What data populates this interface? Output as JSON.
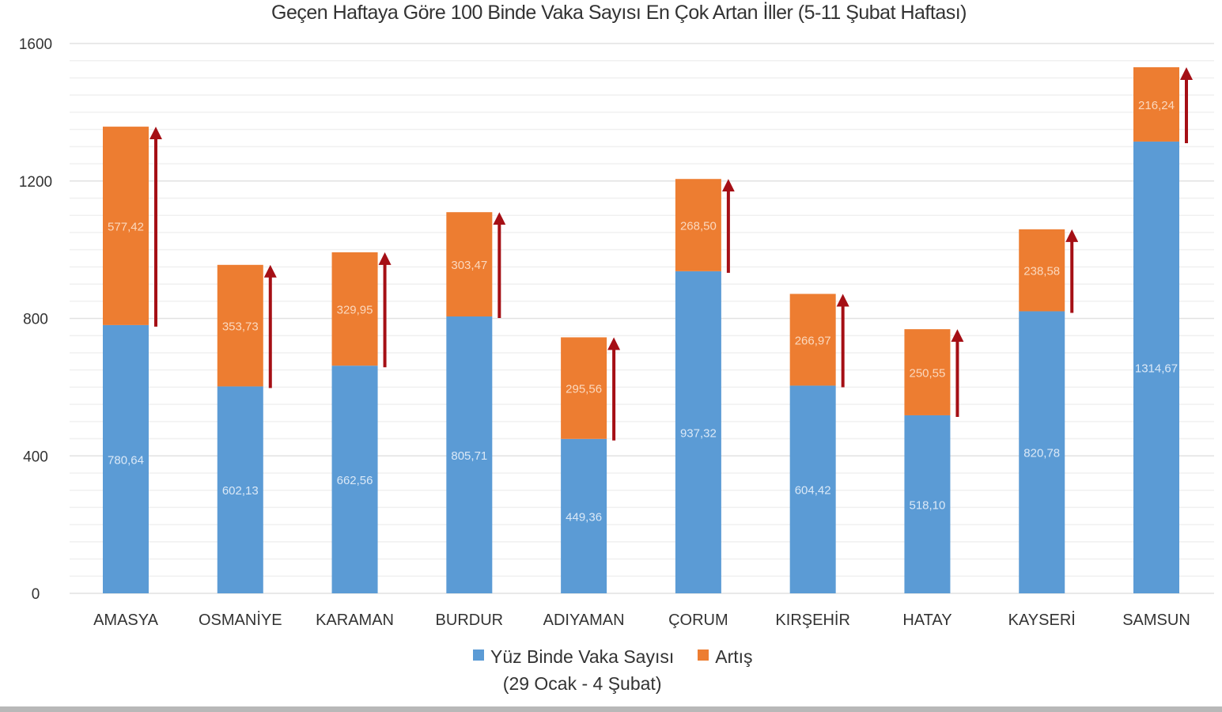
{
  "chart_data": {
    "type": "bar",
    "stacked": true,
    "title": "Geçen Haftaya Göre 100 Binde Vaka Sayısı En Çok Artan İller (5-11 Şubat Haftası)",
    "categories": [
      "AMASYA",
      "OSMANİYE",
      "KARAMAN",
      "BURDUR",
      "ADIYAMAN",
      "ÇORUM",
      "KIRŞEHİR",
      "HATAY",
      "KAYSERİ",
      "SAMSUN"
    ],
    "series": [
      {
        "name": "Yüz Binde Vaka Sayısı (29 Ocak - 4 Şubat)",
        "legend_line1": "Yüz Binde Vaka Sayısı",
        "legend_line2": "(29 Ocak - 4 Şubat)",
        "color": "#5b9bd5",
        "values": [
          780.64,
          602.13,
          662.56,
          805.71,
          449.36,
          937.32,
          604.42,
          518.1,
          820.78,
          1314.67
        ],
        "labels": [
          "780,64",
          "602,13",
          "662,56",
          "805,71",
          "449,36",
          "937,32",
          "604,42",
          "518,10",
          "820,78",
          "1314,67"
        ]
      },
      {
        "name": "Artış",
        "color": "#ed7d31",
        "values": [
          577.42,
          353.73,
          329.95,
          303.47,
          295.56,
          268.5,
          266.97,
          250.55,
          238.58,
          216.24
        ],
        "labels": [
          "577,42",
          "353,73",
          "329,95",
          "303,47",
          "295,56",
          "268,50",
          "266,97",
          "250,55",
          "238,58",
          "216,24"
        ]
      }
    ],
    "yticks": [
      "0",
      "400",
      "800",
      "1200",
      "1600"
    ],
    "ylim": [
      0,
      1600
    ],
    "grid": true,
    "legend_position": "bottom",
    "arrow_color": "#a50f15"
  }
}
